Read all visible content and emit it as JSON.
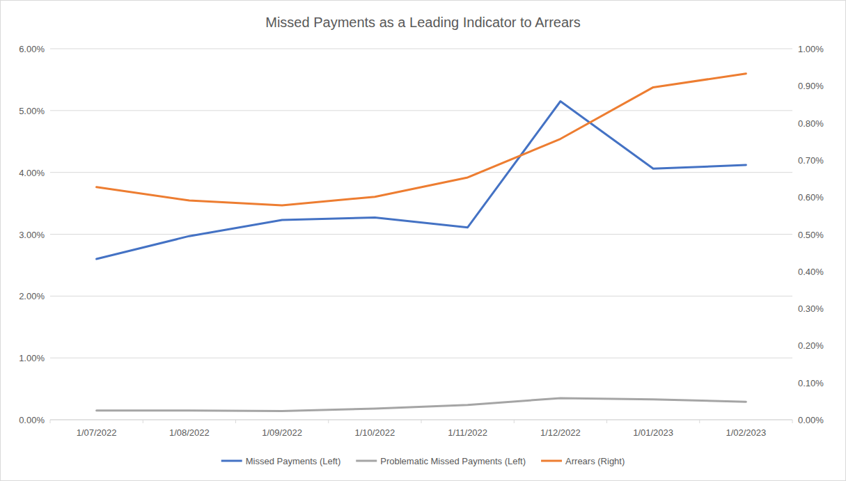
{
  "chart_data": {
    "type": "line",
    "title": "Missed Payments as a Leading Indicator to Arrears",
    "categories": [
      "1/07/2022",
      "1/08/2022",
      "1/09/2022",
      "1/10/2022",
      "1/11/2022",
      "1/12/2022",
      "1/01/2023",
      "1/02/2023"
    ],
    "series": [
      {
        "name": "Missed Payments (Left)",
        "color": "#4472c4",
        "values": [
          2.6,
          2.97,
          3.23,
          3.27,
          3.11,
          5.15,
          4.06,
          4.12
        ]
      },
      {
        "name": "Problematic Missed Payments (Left)",
        "color": "#a5a5a5",
        "values": [
          0.15,
          0.15,
          0.14,
          0.18,
          0.24,
          0.35,
          0.33,
          0.29
        ]
      },
      {
        "name": "Arrears (Right)",
        "color": "#ed7d31",
        "axis": "y2",
        "values": [
          0.627,
          0.591,
          0.578,
          0.601,
          0.653,
          0.757,
          0.896,
          0.933
        ]
      }
    ],
    "ylim": [
      0,
      6
    ],
    "yticks": [
      {
        "value": 0,
        "label": "0.00%"
      },
      {
        "value": 1,
        "label": "1.00%"
      },
      {
        "value": 2,
        "label": "2.00%"
      },
      {
        "value": 3,
        "label": "3.00%"
      },
      {
        "value": 4,
        "label": "4.00%"
      },
      {
        "value": 5,
        "label": "5.00%"
      },
      {
        "value": 6,
        "label": "6.00%"
      }
    ],
    "y2lim": [
      0,
      1
    ],
    "y2ticks": [
      {
        "value": 0,
        "label": "0.00%"
      },
      {
        "value": 0.1,
        "label": "0.10%"
      },
      {
        "value": 0.2,
        "label": "0.20%"
      },
      {
        "value": 0.3,
        "label": "0.30%"
      },
      {
        "value": 0.4,
        "label": "0.40%"
      },
      {
        "value": 0.5,
        "label": "0.50%"
      },
      {
        "value": 0.6,
        "label": "0.60%"
      },
      {
        "value": 0.7,
        "label": "0.70%"
      },
      {
        "value": 0.8,
        "label": "0.80%"
      },
      {
        "value": 0.9,
        "label": "0.90%"
      },
      {
        "value": 1,
        "label": "1.00%"
      }
    ],
    "grid": true,
    "legend": "bottom"
  }
}
